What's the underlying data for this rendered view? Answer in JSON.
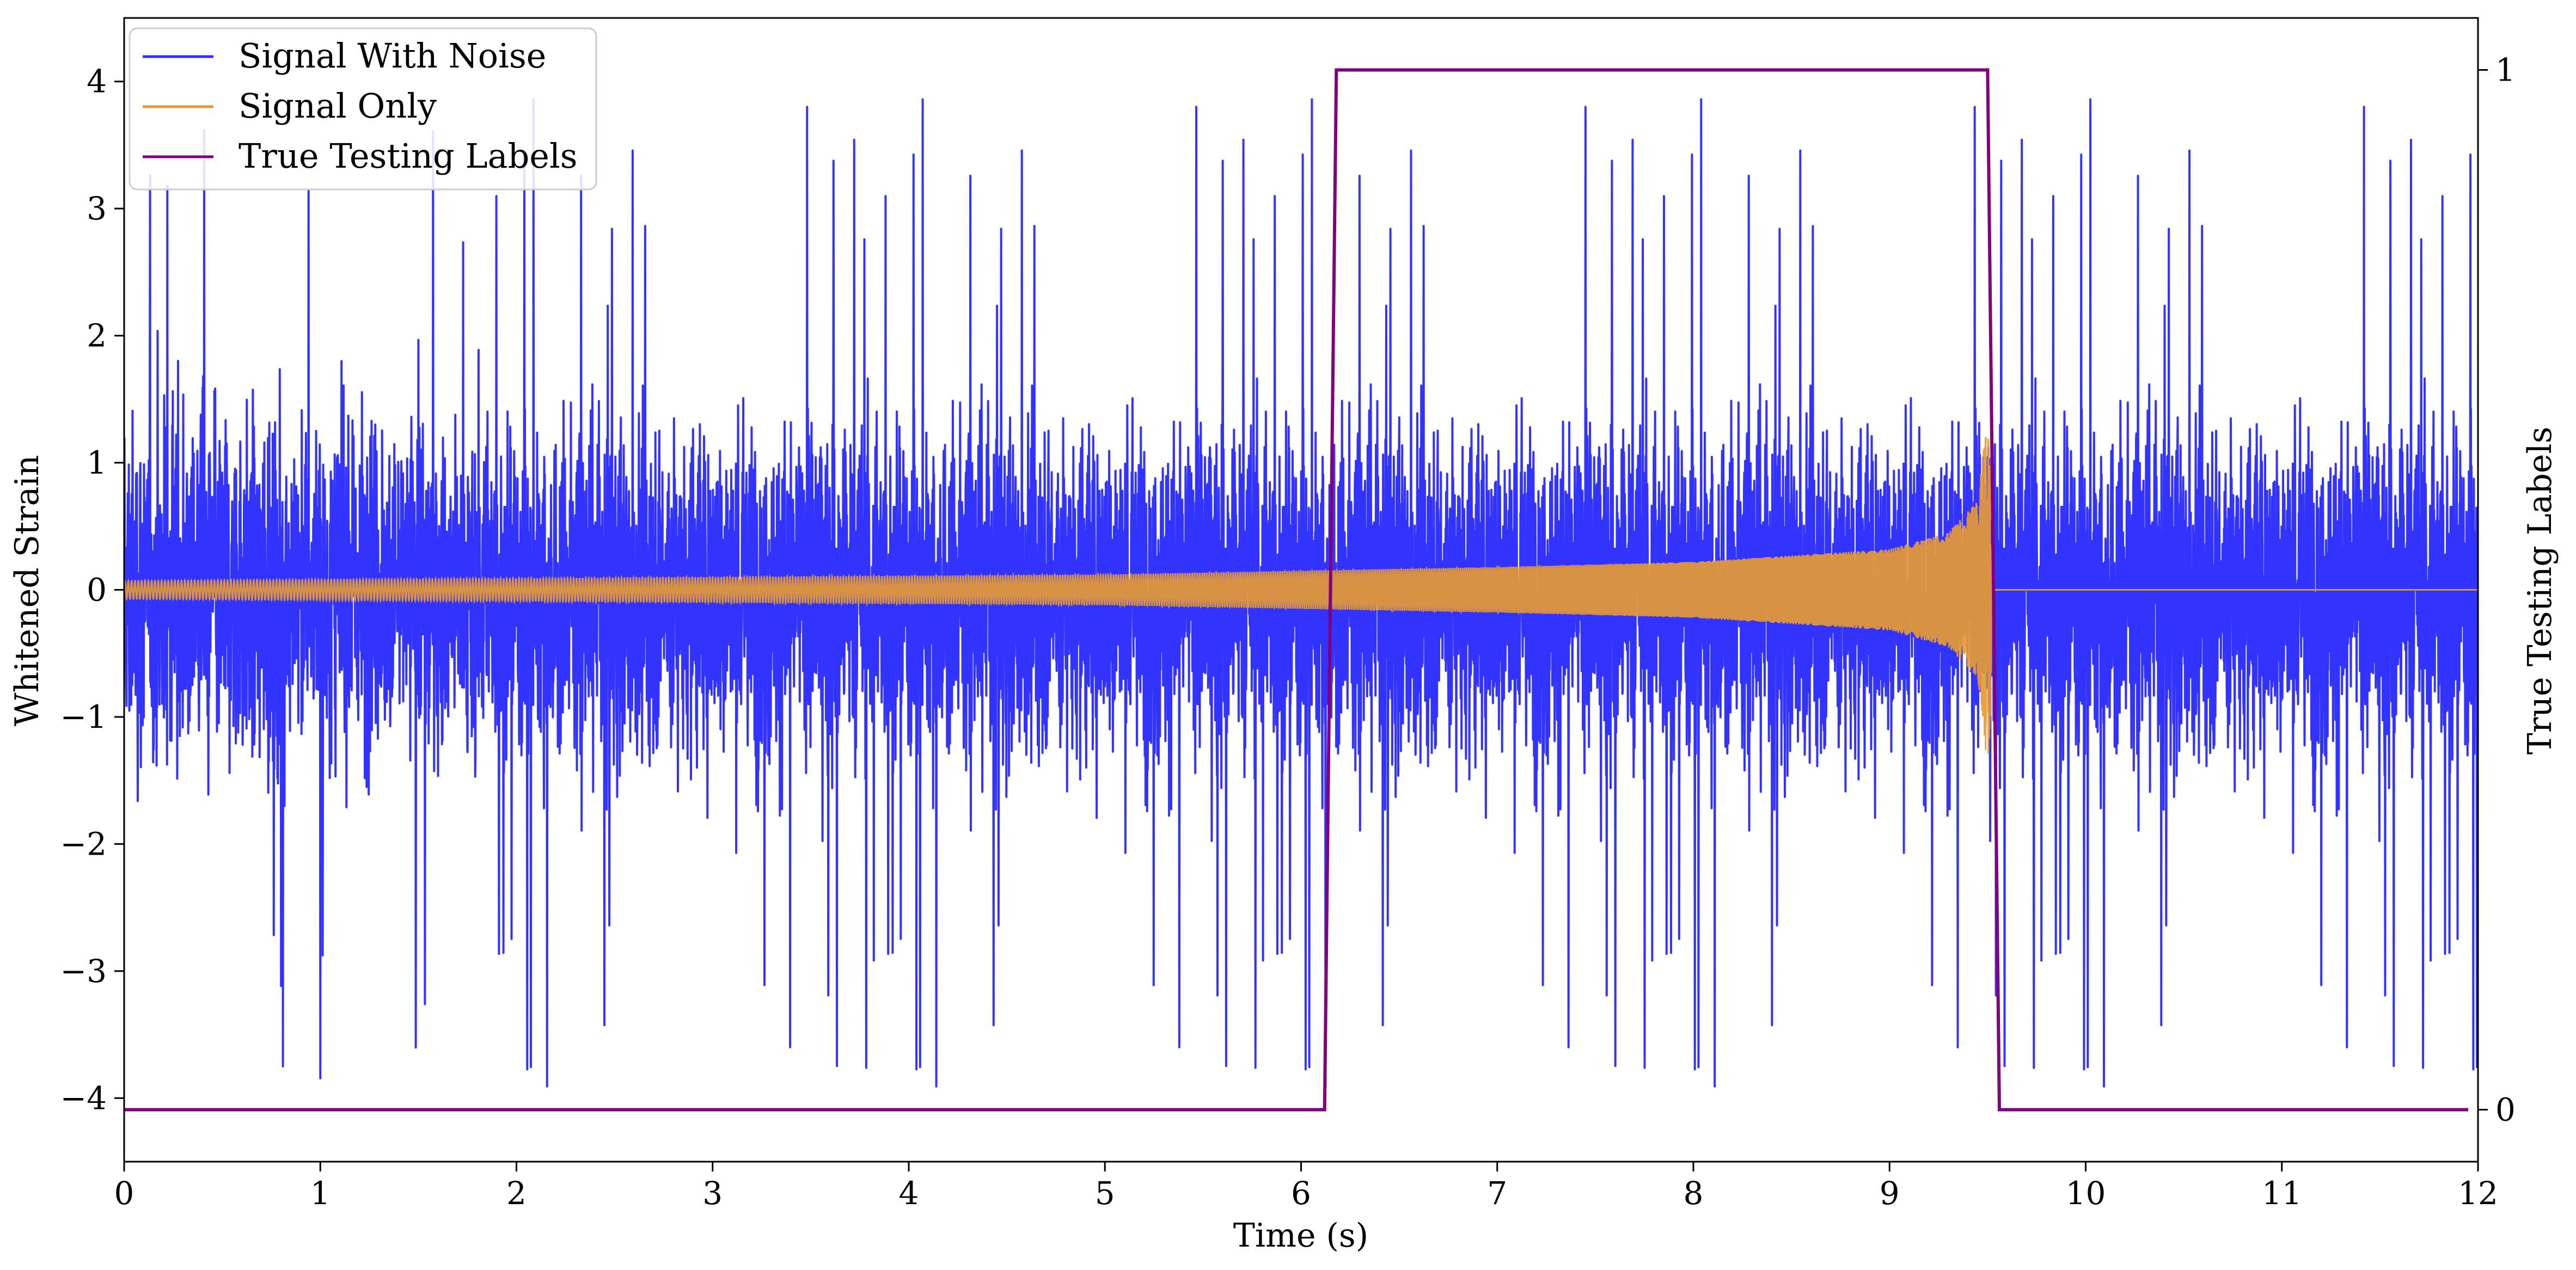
{
  "chart_data": {
    "type": "line",
    "xlabel": "Time (s)",
    "ylabel": "Whitened Strain",
    "y2label": "True Testing Labels",
    "xlim": [
      0,
      12
    ],
    "ylim": [
      -4.5,
      4.5
    ],
    "y2lim": [
      -0.05,
      1.05
    ],
    "xticks": [
      "0",
      "1",
      "2",
      "3",
      "4",
      "5",
      "6",
      "7",
      "8",
      "9",
      "10",
      "11",
      "12"
    ],
    "yticks": [
      "−4",
      "−3",
      "−2",
      "−1",
      "0",
      "1",
      "2",
      "3",
      "4"
    ],
    "y2ticks": [
      "0",
      "1"
    ],
    "grid": false,
    "legend_position": "top-left",
    "series": [
      {
        "name": "Signal With Noise",
        "color": "#3333ff",
        "kind": "noise",
        "x_range": [
          0,
          12
        ],
        "typical_amplitude": 1.6,
        "peak_max": 4.2,
        "peak_min": -4.1
      },
      {
        "name": "Signal Only",
        "color": "#e69a35",
        "kind": "chirp",
        "x": [
          0,
          1,
          2,
          3,
          4,
          5,
          6,
          7,
          8,
          9,
          9.3,
          9.45,
          9.5,
          9.55,
          12
        ],
        "envelope": [
          0.07,
          0.08,
          0.09,
          0.1,
          0.11,
          0.12,
          0.15,
          0.18,
          0.22,
          0.32,
          0.45,
          0.7,
          1.4,
          0,
          0
        ]
      },
      {
        "name": "True Testing Labels",
        "color": "#800080",
        "axis": "right",
        "x": [
          0,
          6.12,
          6.18,
          9.5,
          9.56,
          11.95
        ],
        "values": [
          0,
          0,
          1,
          1,
          0,
          0
        ]
      }
    ]
  }
}
